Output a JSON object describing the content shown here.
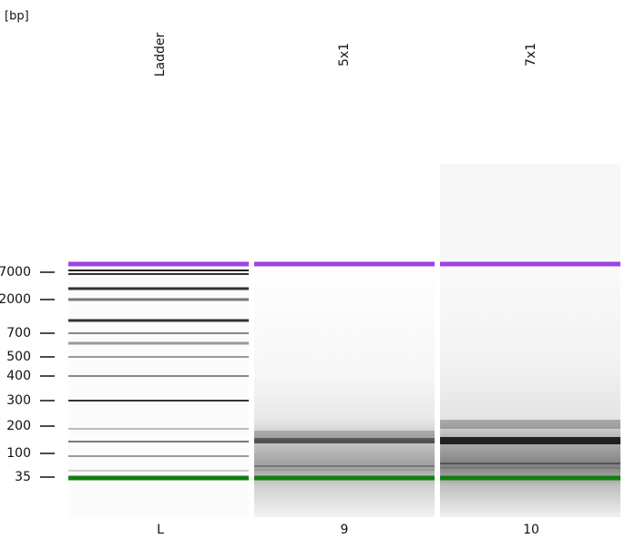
{
  "axis_unit": "[bp]",
  "size_markers": [
    "7000",
    "2000",
    "700",
    "500",
    "400",
    "300",
    "200",
    "100",
    "35"
  ],
  "lanes": [
    {
      "name": "Ladder",
      "number": "L"
    },
    {
      "name": "5x1",
      "number": "9"
    },
    {
      "name": "7x1",
      "number": "10"
    }
  ]
}
